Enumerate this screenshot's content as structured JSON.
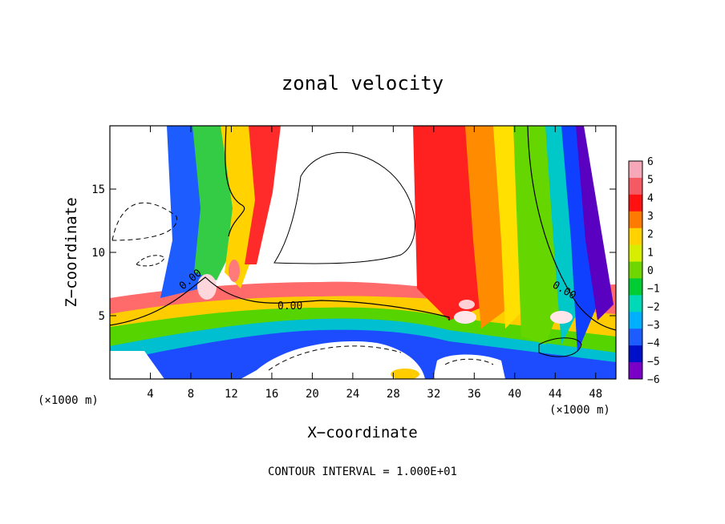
{
  "chart_data": {
    "type": "heatmap",
    "title": "zonal velocity",
    "xlabel": "X−coordinate",
    "ylabel": "Z−coordinate",
    "x_unit_left": "(×1000 m)",
    "x_unit_right": "(×1000 m)",
    "footer": "CONTOUR INTERVAL = 1.000E+01",
    "xlim": [
      0,
      50
    ],
    "ylim": [
      0,
      20
    ],
    "x_ticks": [
      4,
      8,
      12,
      16,
      20,
      24,
      28,
      32,
      36,
      40,
      44,
      48
    ],
    "x_ticklabels": [
      "4",
      "8",
      "12",
      "16",
      "20",
      "24",
      "28",
      "32",
      "36",
      "40",
      "44",
      "48"
    ],
    "y_ticks": [
      5,
      10,
      15
    ],
    "y_ticklabels": [
      "5",
      "10",
      "15"
    ],
    "colorbar": {
      "range": [
        -6,
        6
      ],
      "ticks": [
        "6",
        "5",
        "4",
        "3",
        "2",
        "1",
        "0",
        "−1",
        "−2",
        "−3",
        "−4",
        "−5",
        "−6"
      ],
      "colors": [
        "#f7a8b8",
        "#f55a63",
        "#ff1111",
        "#ff7a00",
        "#ffd200",
        "#d8ee00",
        "#6fd600",
        "#00cc33",
        "#00d9b8",
        "#00b0ff",
        "#1d5cff",
        "#0010c8",
        "#7a00c8"
      ]
    },
    "contour_labels": [
      "0.00",
      "0.00",
      "0.00"
    ],
    "grid": false,
    "legend": "colorbar-right"
  }
}
